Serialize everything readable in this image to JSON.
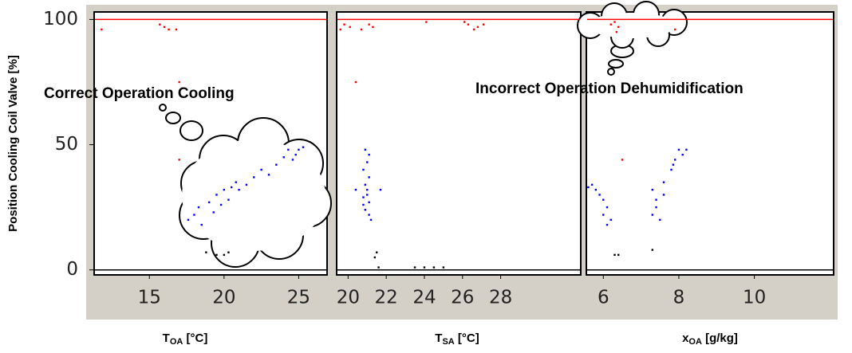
{
  "ylabel": "Position Cooling Coil Valve [%]",
  "annotations": [
    "Correct Operation Cooling",
    "Incorrect Operation Dehumidification"
  ],
  "chart_data": [
    {
      "type": "scatter",
      "xlabel": {
        "main": "T",
        "sub": "OA",
        "unit": " [°C]"
      },
      "xlim": [
        11.3,
        26.9
      ],
      "xticks": [
        15,
        20,
        25
      ],
      "ylim": [
        -2,
        103
      ],
      "yticks": [
        0,
        50,
        100
      ],
      "hlines": [
        {
          "y": 100,
          "color": "#ff0000"
        },
        {
          "y": 0,
          "color": "#000000"
        }
      ],
      "series": [
        {
          "color": "#ff0000",
          "x": [
            11.8,
            15.7,
            16,
            16.3,
            16.8,
            17,
            17
          ],
          "y": [
            96,
            98,
            97,
            96,
            96,
            75,
            44
          ]
        },
        {
          "color": "#0000ff",
          "x": [
            17.6,
            18,
            18.3,
            18.5,
            19,
            19.3,
            19.5,
            19.8,
            20,
            20.3,
            20.5,
            20.8,
            21,
            21.5,
            22,
            22.5,
            23,
            23.5,
            24,
            24.3,
            24.6,
            25,
            25.3,
            24.8
          ],
          "y": [
            20,
            22,
            25,
            18,
            27,
            23,
            30,
            26,
            32,
            28,
            33,
            35,
            32,
            34,
            37,
            40,
            38,
            42,
            45,
            48,
            44,
            48,
            49,
            46
          ]
        },
        {
          "color": "#000000",
          "x": [
            18.8,
            19.5,
            20,
            20.3
          ],
          "y": [
            7,
            6,
            6,
            7
          ]
        }
      ]
    },
    {
      "type": "scatter",
      "xlabel": {
        "main": "T",
        "sub": "SA",
        "unit": " [°C]"
      },
      "xlim": [
        19.4,
        32.2
      ],
      "xticks": [
        20,
        22,
        24,
        26,
        28
      ],
      "ylim": [
        -2,
        103
      ],
      "hlines": [
        {
          "y": 100,
          "color": "#ff0000"
        },
        {
          "y": 0,
          "color": "#000000"
        }
      ],
      "series": [
        {
          "color": "#ff0000",
          "x": [
            19.6,
            19.8,
            20.1,
            20.7,
            21.1,
            21.3,
            20.4,
            24.1,
            26.1,
            26.3,
            26.8,
            27.1,
            26.6
          ],
          "y": [
            96,
            98,
            97,
            96,
            98,
            97,
            75,
            99,
            99,
            98,
            97,
            98,
            96
          ]
        },
        {
          "color": "#0000ff",
          "x": [
            20.9,
            21.1,
            21,
            20.8,
            21.1,
            20.9,
            21,
            20.4,
            21.7,
            20.8,
            21.1,
            20.9,
            21.1,
            21.2,
            20.8,
            21
          ],
          "y": [
            48,
            46,
            43,
            40,
            37,
            34,
            32,
            32,
            32,
            29,
            27,
            24,
            22,
            20,
            26,
            30
          ]
        },
        {
          "color": "#000000",
          "x": [
            21.5,
            21.4,
            21.6,
            23.5,
            24,
            24.5,
            25
          ],
          "y": [
            7,
            5,
            1,
            1,
            1,
            1,
            1
          ]
        }
      ]
    },
    {
      "type": "scatter",
      "xlabel": {
        "main": "x",
        "sub": "OA",
        "unit": " [g/kg]"
      },
      "xlim": [
        5.55,
        12.1
      ],
      "xticks": [
        6,
        8,
        10
      ],
      "ylim": [
        -2,
        103
      ],
      "hlines": [
        {
          "y": 100,
          "color": "#ff0000"
        },
        {
          "y": 0,
          "color": "#000000"
        }
      ],
      "series": [
        {
          "color": "#ff0000",
          "x": [
            6.3,
            6.4,
            6.2,
            6.35,
            7.9,
            6.5
          ],
          "y": [
            99,
            97,
            98,
            95,
            96,
            44
          ]
        },
        {
          "color": "#0000ff",
          "x": [
            5.6,
            5.7,
            5.8,
            5.9,
            6,
            6.1,
            6,
            6.2,
            6.1,
            7.3,
            7.4,
            7.3,
            7.5,
            7.4,
            7.6,
            7.6,
            7.8,
            7.9,
            8,
            8.1,
            8.2,
            7.85
          ],
          "y": [
            33,
            34,
            32,
            30,
            28,
            25,
            22,
            20,
            18,
            32,
            28,
            22,
            20,
            25,
            35,
            30,
            40,
            44,
            48,
            46,
            48,
            42
          ]
        },
        {
          "color": "#000000",
          "x": [
            6.3,
            6.4,
            7.3
          ],
          "y": [
            6,
            6,
            8
          ]
        }
      ]
    }
  ]
}
